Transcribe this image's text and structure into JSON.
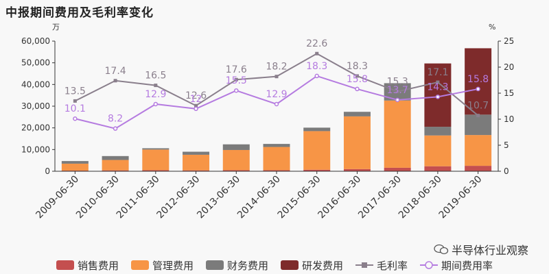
{
  "title": "中报期间费用及毛利率变化",
  "left_unit": "万",
  "right_unit": "%",
  "watermark": "半导体行业观察",
  "colors": {
    "sales": "#c44f4f",
    "admin": "#f79546",
    "finance": "#7b7b7b",
    "rd": "#7e2b2b",
    "gross_margin": "#8a7f8c",
    "period_rate": "#b57be0"
  },
  "chart_data": {
    "type": "bar",
    "categories": [
      "2009-06-30",
      "2010-06-30",
      "2011-06-30",
      "2012-06-30",
      "2013-06-30",
      "2014-06-30",
      "2015-06-30",
      "2016-06-30",
      "2017-06-30",
      "2018-06-30",
      "2019-06-30"
    ],
    "ylim": [
      0,
      60000
    ],
    "yticks": [
      "0",
      "10,000",
      "20,000",
      "30,000",
      "40,000",
      "50,000",
      "60,000"
    ],
    "y2lim": [
      0,
      25
    ],
    "y2ticks": [
      "0",
      "5",
      "10",
      "15",
      "20",
      "25"
    ],
    "series": [
      {
        "name": "销售费用",
        "type": "bar",
        "stack": "cost",
        "values": [
          300,
          400,
          500,
          400,
          500,
          500,
          700,
          1000,
          1600,
          2300,
          2500
        ]
      },
      {
        "name": "管理费用",
        "type": "bar",
        "stack": "cost",
        "values": [
          3200,
          4800,
          9500,
          7200,
          9300,
          10700,
          17800,
          24300,
          31000,
          14200,
          14200
        ]
      },
      {
        "name": "财务费用",
        "type": "bar",
        "stack": "cost",
        "values": [
          1200,
          1800,
          600,
          1400,
          2600,
          1400,
          1600,
          2100,
          8000,
          4000,
          9400
        ]
      },
      {
        "name": "研发费用",
        "type": "bar",
        "stack": "cost",
        "values": [
          0,
          0,
          0,
          0,
          0,
          0,
          0,
          0,
          0,
          29200,
          30600
        ]
      },
      {
        "name": "毛利率",
        "type": "line",
        "axis": "right",
        "values": [
          13.5,
          17.4,
          16.5,
          12.6,
          17.6,
          18.2,
          22.6,
          18.3,
          15.3,
          17.1,
          10.7
        ]
      },
      {
        "name": "期间费用率",
        "type": "line",
        "axis": "right",
        "values": [
          10.1,
          8.2,
          12.9,
          12.0,
          15.5,
          12.9,
          18.3,
          15.8,
          13.7,
          14.3,
          15.8
        ]
      }
    ],
    "legend": "bottom"
  }
}
